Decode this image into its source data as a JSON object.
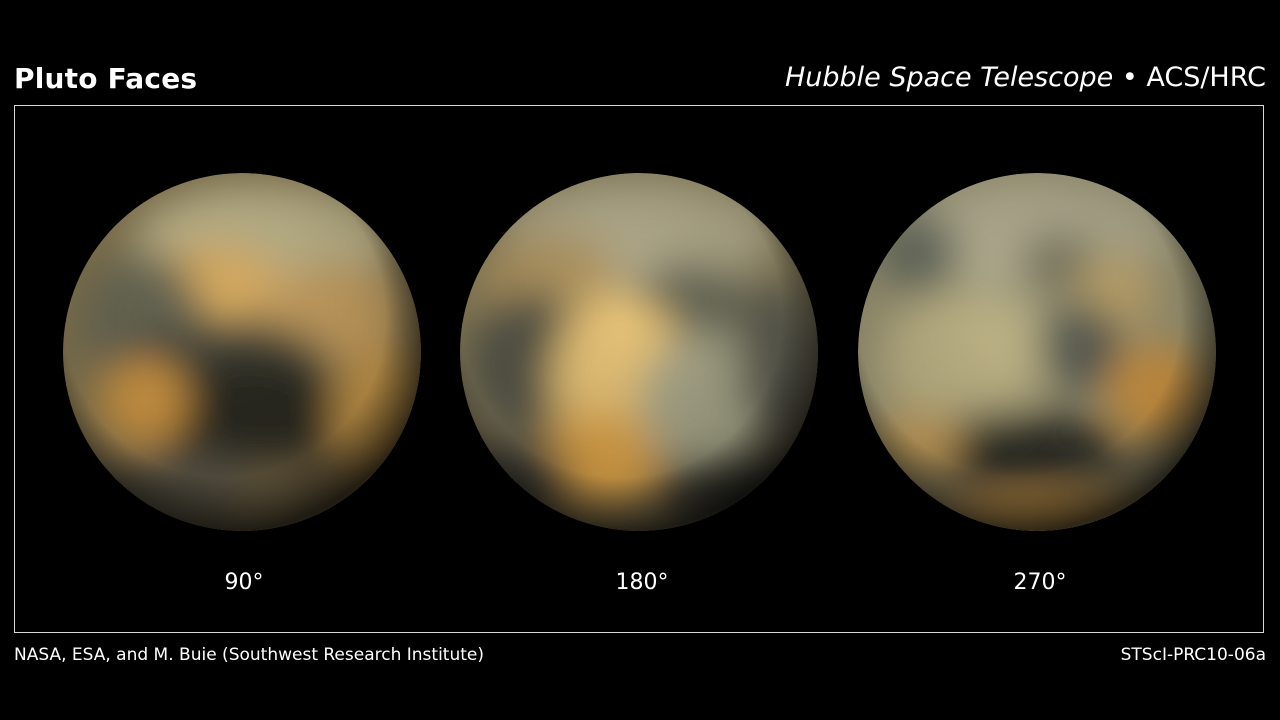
{
  "header": {
    "title": "Pluto Faces",
    "subtitle_italic": "Hubble Space Telescope",
    "subtitle_separator": " • ",
    "subtitle_instrument": "ACS/HRC"
  },
  "faces": [
    {
      "label": "90°"
    },
    {
      "label": "180°"
    },
    {
      "label": "270°"
    }
  ],
  "footer": {
    "credit": "NASA, ESA, and M. Buie (Southwest Research Institute)",
    "code": "STScI-PRC10-06a"
  },
  "colors": {
    "background": "#000000",
    "frame": "#d8d8d8",
    "text": "#ffffff"
  }
}
